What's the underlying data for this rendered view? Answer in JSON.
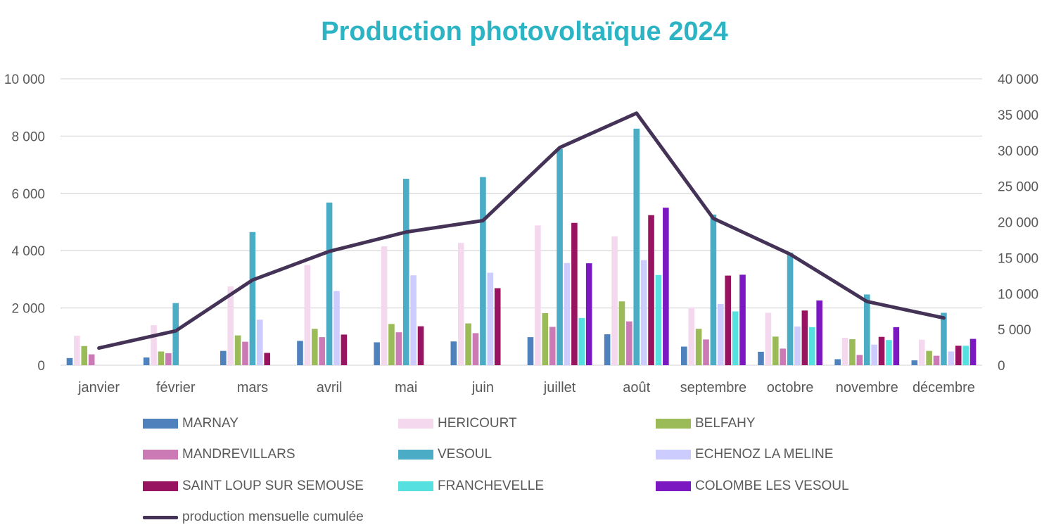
{
  "chart_data": {
    "type": "bar",
    "title": "Production photovoltaïque 2024",
    "categories": [
      "janvier",
      "février",
      "mars",
      "avril",
      "mai",
      "juin",
      "juillet",
      "août",
      "septembre",
      "octobre",
      "novembre",
      "décembre"
    ],
    "y_left": {
      "min": 0,
      "max": 10000,
      "ticks": [
        "0",
        "2 000",
        "4 000",
        "6 000",
        "8 000",
        "10 000"
      ]
    },
    "y_right": {
      "min": 0,
      "max": 40000,
      "ticks": [
        "0",
        "5 000",
        "10 000",
        "15 000",
        "20 000",
        "25 000",
        "30 000",
        "35 000",
        "40 000"
      ]
    },
    "grid": true,
    "legend_position": "bottom",
    "series": [
      {
        "name": "MARNAY",
        "color": "#4f81bd",
        "values": [
          250,
          270,
          500,
          850,
          800,
          830,
          980,
          1080,
          650,
          470,
          210,
          170
        ]
      },
      {
        "name": "HERICOURT",
        "color": "#f4d9ee",
        "values": [
          1030,
          1400,
          2750,
          3500,
          4150,
          4270,
          4880,
          4500,
          2020,
          1830,
          960,
          890
        ]
      },
      {
        "name": "BELFAHY",
        "color": "#9bbb59",
        "values": [
          670,
          480,
          1040,
          1270,
          1440,
          1460,
          1820,
          2230,
          1270,
          1000,
          910,
          500
        ]
      },
      {
        "name": "MANDREVILLARS",
        "color": "#cc7ab5",
        "values": [
          380,
          420,
          820,
          980,
          1150,
          1120,
          1340,
          1530,
          900,
          580,
          360,
          330
        ]
      },
      {
        "name": "VESOUL",
        "color": "#4bacc6",
        "values": [
          0,
          2170,
          4650,
          5680,
          6510,
          6570,
          7550,
          8260,
          5260,
          3930,
          2470,
          1830
        ]
      },
      {
        "name": "ECHENOZ LA MELINE",
        "color": "#ccccff",
        "values": [
          0,
          0,
          1590,
          2590,
          3140,
          3230,
          3570,
          3670,
          2140,
          1350,
          720,
          480
        ]
      },
      {
        "name": "SAINT LOUP SUR SEMOUSE",
        "color": "#981460",
        "values": [
          0,
          0,
          430,
          1070,
          1360,
          2690,
          4970,
          5240,
          3130,
          1910,
          990,
          680
        ]
      },
      {
        "name": "FRANCHEVELLE",
        "color": "#56e0e0",
        "values": [
          0,
          0,
          0,
          0,
          0,
          0,
          1650,
          3150,
          1880,
          1330,
          880,
          680
        ]
      },
      {
        "name": "COLOMBE LES VESOUL",
        "color": "#7b18c2",
        "values": [
          0,
          0,
          0,
          0,
          0,
          0,
          3560,
          5500,
          3160,
          2260,
          1330,
          920
        ]
      }
    ],
    "line_series": {
      "name": "production mensuelle cumulée",
      "color": "#443356",
      "axis": "right",
      "values": [
        2400,
        4800,
        11900,
        15900,
        18600,
        20200,
        30400,
        35200,
        20500,
        15500,
        8900,
        6600
      ]
    }
  }
}
